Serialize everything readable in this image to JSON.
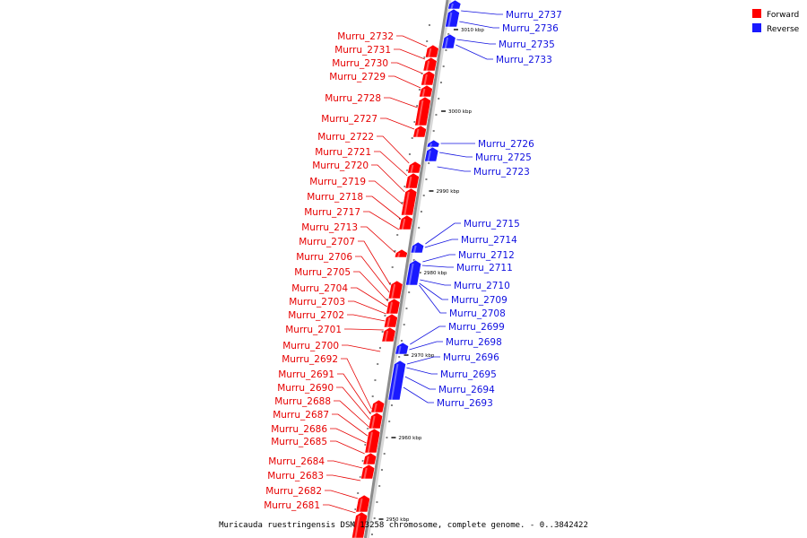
{
  "caption": "Muricauda ruestringensis DSM 13258 chromosome, complete genome. - 0..3842422",
  "legend": [
    {
      "label": "Forward",
      "color": "#ff0000"
    },
    {
      "label": "Reverse",
      "color": "#0000ff"
    }
  ],
  "colors": {
    "forward": "#ff0000",
    "reverse": "#1a1aff",
    "axis": "#8c8c8c"
  },
  "ticks": [
    "3010 kbp",
    "3000 kbp",
    "2990 kbp",
    "2980 kbp",
    "2970 kbp",
    "2960 kbp",
    "2950 kbp"
  ],
  "forward_genes": [
    "Murru_2732",
    "Murru_2731",
    "Murru_2730",
    "Murru_2729",
    "Murru_2728",
    "Murru_2727",
    "Murru_2722",
    "Murru_2721",
    "Murru_2720",
    "Murru_2719",
    "Murru_2718",
    "Murru_2717",
    "Murru_2713",
    "Murru_2707",
    "Murru_2706",
    "Murru_2705",
    "Murru_2704",
    "Murru_2703",
    "Murru_2702",
    "Murru_2701",
    "Murru_2700",
    "Murru_2692",
    "Murru_2691",
    "Murru_2690",
    "Murru_2688",
    "Murru_2687",
    "Murru_2686",
    "Murru_2685",
    "Murru_2684",
    "Murru_2683",
    "Murru_2682",
    "Murru_2681"
  ],
  "reverse_genes": [
    "Murru_2737",
    "Murru_2736",
    "Murru_2735",
    "Murru_2733",
    "Murru_2726",
    "Murru_2725",
    "Murru_2723",
    "Murru_2715",
    "Murru_2714",
    "Murru_2712",
    "Murru_2711",
    "Murru_2710",
    "Murru_2709",
    "Murru_2708",
    "Murru_2699",
    "Murru_2698",
    "Murru_2696",
    "Murru_2695",
    "Murru_2694",
    "Murru_2693"
  ]
}
